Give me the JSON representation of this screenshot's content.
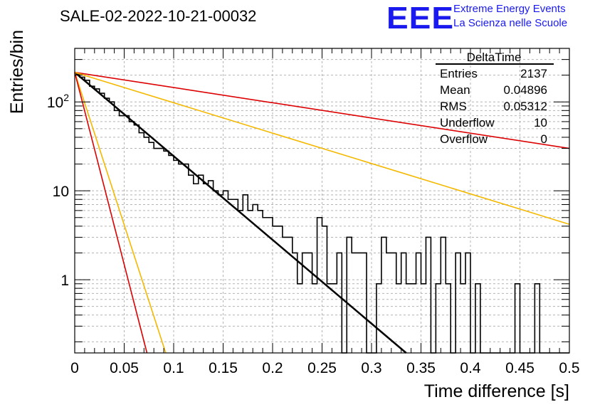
{
  "header": {
    "run_title": "SALE-02-2022-10-21-00032",
    "logo_text": "EEE",
    "logo_line1": "Extreme Energy Events",
    "logo_line2": "La Scienza nelle Scuole",
    "logo_color": "#1a1aee"
  },
  "stats_box": {
    "title": "DeltaTime",
    "rows": [
      {
        "label": "Entries",
        "value": "2137"
      },
      {
        "label": "Mean",
        "value": "0.04896"
      },
      {
        "label": "RMS",
        "value": "0.05312"
      },
      {
        "label": "Underflow",
        "value": "10"
      },
      {
        "label": "Overflow",
        "value": "0"
      }
    ]
  },
  "chart_data": {
    "type": "line",
    "title": "SALE-02-2022-10-21-00032",
    "xlabel": "Time difference [s]",
    "ylabel": "Entries/bin",
    "xlim": [
      0,
      0.5
    ],
    "ylim": [
      0.15,
      400
    ],
    "y_scale": "log",
    "grid": true,
    "x_ticks": [
      "0",
      "0.05",
      "0.1",
      "0.15",
      "0.2",
      "0.25",
      "0.3",
      "0.35",
      "0.4",
      "0.45",
      "0.5"
    ],
    "y_ticks": [
      {
        "value": 1,
        "label": "1"
      },
      {
        "value": 10,
        "label": "10"
      },
      {
        "value": 100,
        "label": "10²"
      }
    ],
    "histogram": {
      "name": "DeltaTime",
      "bin_width": 0.005,
      "x_start": 0,
      "color": "#000000",
      "values": [
        205,
        190,
        175,
        150,
        140,
        125,
        110,
        100,
        80,
        70,
        70,
        60,
        55,
        45,
        40,
        35,
        30,
        30,
        28,
        25,
        22,
        20,
        20,
        15,
        12,
        15,
        12,
        13,
        10,
        9,
        10,
        8,
        8,
        6,
        9,
        6,
        7,
        6,
        5,
        5,
        4,
        4,
        3,
        3,
        2,
        0.9,
        2,
        2,
        0.9,
        5,
        4,
        0.9,
        0.9,
        2,
        0.15,
        3,
        2,
        2,
        2,
        0.15,
        0.15,
        0.9,
        3,
        2,
        2,
        0.9,
        2,
        0.9,
        0.9,
        2,
        0.9,
        3,
        0.15,
        0.9,
        3,
        0.9,
        0.15,
        2,
        0.9,
        2,
        0.15,
        0.9,
        0.15,
        0.15,
        0.15,
        0.15,
        0.15,
        0.15,
        0.15,
        0.9,
        0.15,
        0.15,
        0.15,
        0.9,
        0.15,
        0.15,
        0.15,
        0.15,
        0.15,
        0.15
      ]
    },
    "series": [
      {
        "color": "#000000",
        "x": [
          0,
          0.335
        ],
        "y": [
          215,
          0.15
        ],
        "width": 2.5
      },
      {
        "color": "#dd0000",
        "x": [
          0,
          0.5
        ],
        "y": [
          215,
          30
        ],
        "width": 1.6
      },
      {
        "color": "#f5b800",
        "x": [
          0,
          0.5
        ],
        "y": [
          215,
          4.2
        ],
        "width": 1.6
      },
      {
        "color": "#f5b800",
        "x": [
          0,
          0.092
        ],
        "y": [
          215,
          0.15
        ],
        "width": 1.6
      },
      {
        "color": "#dd0000",
        "x": [
          0,
          0.073
        ],
        "y": [
          215,
          0.15
        ],
        "width": 1.6
      }
    ]
  }
}
